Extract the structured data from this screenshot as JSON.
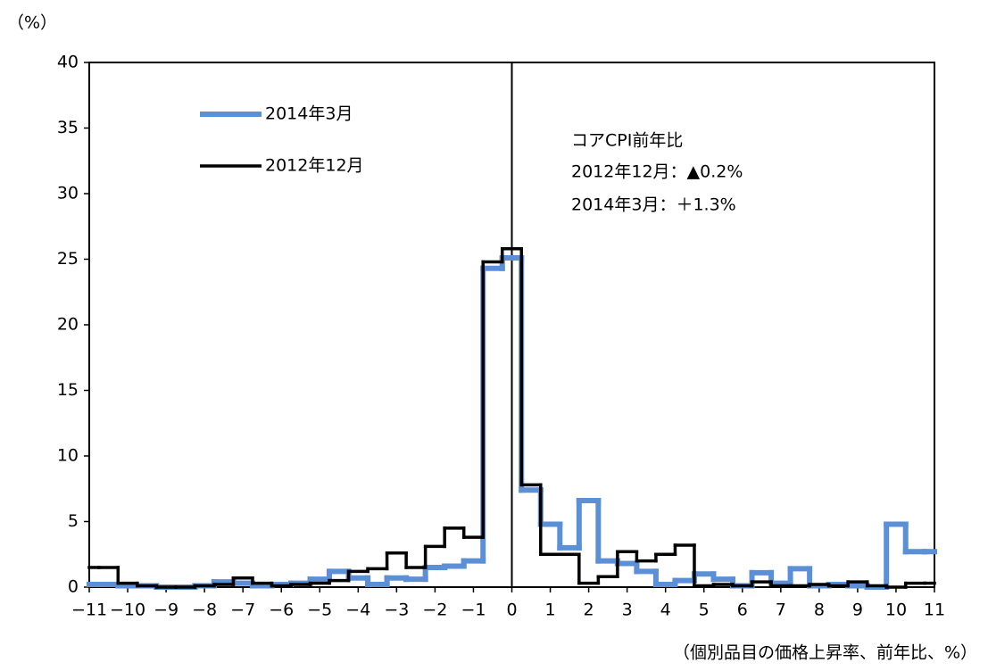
{
  "chart_data": {
    "type": "step-histogram",
    "y_unit_label": "（%）",
    "xlabel": "（個別品目の価格上昇率、前年比、%）",
    "annotation": [
      "コアCPI前年比",
      "2012年12月：▲0.2%",
      "2014年3月：＋1.3%"
    ],
    "bins": [
      -11,
      -10.75,
      -10.25,
      -9.75,
      -9.25,
      -8.75,
      -8.25,
      -7.75,
      -7.25,
      -6.75,
      -6.25,
      -5.75,
      -5.25,
      -4.75,
      -4.25,
      -3.75,
      -3.25,
      -2.75,
      -2.25,
      -1.75,
      -1.25,
      -0.75,
      -0.25,
      0.25,
      0.75,
      1.25,
      1.75,
      2.25,
      2.75,
      3.25,
      3.75,
      4.25,
      4.75,
      5.25,
      5.75,
      6.25,
      6.75,
      7.25,
      7.75,
      8.25,
      8.75,
      9.25,
      9.75,
      10.25,
      10.75,
      11
    ],
    "series": [
      {
        "name": "2014年3月",
        "color": "#5b8fd6",
        "width": 6,
        "values": [
          0.2,
          0.2,
          0.1,
          0.1,
          0,
          0,
          0.1,
          0.4,
          0.3,
          0.1,
          0.2,
          0.3,
          0.6,
          1.2,
          0.7,
          0.2,
          0.7,
          0.6,
          1.5,
          1.6,
          2.0,
          24.3,
          25.1,
          7.4,
          4.8,
          3.0,
          6.6,
          2.0,
          1.8,
          1.2,
          0.2,
          0.5,
          1.0,
          0.6,
          0.1,
          1.1,
          0.3,
          1.4,
          0.1,
          0.2,
          0.1,
          0.0,
          4.8,
          2.7,
          2.7
        ]
      },
      {
        "name": "2012年12月",
        "color": "#000000",
        "width": 3.5,
        "values": [
          1.5,
          1.5,
          0.3,
          0.1,
          0,
          0,
          0.1,
          0.2,
          0.7,
          0.3,
          0.1,
          0.2,
          0.3,
          0.5,
          1.2,
          1.4,
          2.6,
          1.5,
          3.1,
          4.5,
          3.8,
          24.8,
          25.8,
          7.8,
          2.5,
          2.5,
          0.3,
          0.8,
          2.7,
          2.0,
          2.5,
          3.2,
          0.1,
          0.2,
          0.1,
          0.4,
          0.1,
          0.1,
          0.2,
          0.1,
          0.4,
          0.1,
          0.0,
          0.3,
          0.3
        ]
      }
    ],
    "xlim": [
      -11,
      11
    ],
    "xticks": [
      {
        "value": -11,
        "label": "−11"
      },
      {
        "value": -10,
        "label": "−10"
      },
      {
        "value": -9,
        "label": "−9"
      },
      {
        "value": -8,
        "label": "−8"
      },
      {
        "value": -7,
        "label": "−7"
      },
      {
        "value": -6,
        "label": "−6"
      },
      {
        "value": -5,
        "label": "−5"
      },
      {
        "value": -4,
        "label": "−4"
      },
      {
        "value": -3,
        "label": "−3"
      },
      {
        "value": -2,
        "label": "−2"
      },
      {
        "value": -1,
        "label": "−1"
      },
      0,
      1,
      2,
      3,
      4,
      5,
      6,
      7,
      8,
      9,
      10,
      11
    ],
    "ylim": [
      0,
      40
    ],
    "yticks": [
      0,
      5,
      10,
      15,
      20,
      25,
      30,
      35,
      40
    ],
    "zero_line": 0,
    "grid": false
  }
}
